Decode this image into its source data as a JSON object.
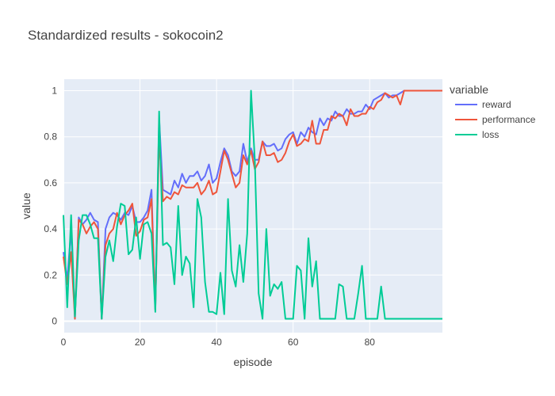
{
  "chart_data": {
    "type": "line",
    "title": "Standardized results - sokocoin2",
    "xlabel": "episode",
    "ylabel": "value",
    "xlim": [
      0,
      99
    ],
    "ylim": [
      -0.05,
      1.05
    ],
    "x_ticks": [
      0,
      20,
      40,
      60,
      80
    ],
    "y_ticks": [
      0,
      0.2,
      0.4,
      0.6,
      0.8,
      1
    ],
    "grid": true,
    "legend_title": "variable",
    "legend_position": "right",
    "colors": {
      "reward": "#636efa",
      "performance": "#ef553b",
      "loss": "#00cc96",
      "plot_bg": "#e5ecf6"
    },
    "series": [
      {
        "name": "reward",
        "values": [
          0.3,
          0.18,
          0.4,
          0.01,
          0.45,
          0.42,
          0.44,
          0.47,
          0.44,
          0.43,
          0.01,
          0.4,
          0.45,
          0.47,
          0.46,
          0.44,
          0.47,
          0.46,
          0.5,
          0.43,
          0.43,
          0.45,
          0.48,
          0.57,
          0.05,
          0.88,
          0.57,
          0.56,
          0.55,
          0.61,
          0.58,
          0.64,
          0.6,
          0.63,
          0.63,
          0.65,
          0.61,
          0.63,
          0.68,
          0.6,
          0.62,
          0.69,
          0.75,
          0.72,
          0.65,
          0.63,
          0.65,
          0.77,
          0.69,
          0.75,
          0.7,
          0.7,
          0.78,
          0.76,
          0.76,
          0.77,
          0.74,
          0.75,
          0.79,
          0.81,
          0.82,
          0.77,
          0.82,
          0.8,
          0.84,
          0.82,
          0.81,
          0.88,
          0.85,
          0.88,
          0.87,
          0.91,
          0.89,
          0.89,
          0.92,
          0.9,
          0.9,
          0.91,
          0.91,
          0.94,
          0.92,
          0.96,
          0.97,
          0.98,
          0.99,
          0.97,
          0.98,
          0.98,
          0.99,
          1.0,
          1.0,
          1.0,
          1.0,
          1.0,
          1.0,
          1.0,
          1.0,
          1.0,
          1.0,
          1.0
        ]
      },
      {
        "name": "performance",
        "values": [
          0.28,
          0.16,
          0.3,
          0.01,
          0.44,
          0.42,
          0.38,
          0.41,
          0.43,
          0.4,
          0.01,
          0.33,
          0.38,
          0.4,
          0.47,
          0.42,
          0.46,
          0.48,
          0.51,
          0.37,
          0.39,
          0.44,
          0.45,
          0.53,
          0.05,
          0.8,
          0.52,
          0.54,
          0.53,
          0.56,
          0.55,
          0.59,
          0.58,
          0.58,
          0.58,
          0.6,
          0.55,
          0.57,
          0.61,
          0.55,
          0.56,
          0.65,
          0.74,
          0.7,
          0.64,
          0.58,
          0.6,
          0.72,
          0.68,
          0.74,
          0.66,
          0.69,
          0.78,
          0.72,
          0.72,
          0.73,
          0.69,
          0.7,
          0.73,
          0.78,
          0.81,
          0.76,
          0.77,
          0.79,
          0.78,
          0.87,
          0.77,
          0.77,
          0.83,
          0.83,
          0.89,
          0.88,
          0.9,
          0.89,
          0.85,
          0.92,
          0.89,
          0.89,
          0.9,
          0.9,
          0.93,
          0.92,
          0.95,
          0.96,
          0.99,
          0.98,
          0.97,
          0.98,
          0.94,
          1.0,
          1.0,
          1.0,
          1.0,
          1.0,
          1.0,
          1.0,
          1.0,
          1.0,
          1.0,
          1.0
        ]
      },
      {
        "name": "loss",
        "values": [
          0.46,
          0.06,
          0.46,
          0.02,
          0.35,
          0.46,
          0.46,
          0.42,
          0.36,
          0.36,
          0.01,
          0.28,
          0.35,
          0.26,
          0.41,
          0.51,
          0.5,
          0.29,
          0.31,
          0.45,
          0.27,
          0.42,
          0.43,
          0.38,
          0.04,
          0.91,
          0.33,
          0.34,
          0.32,
          0.16,
          0.5,
          0.2,
          0.28,
          0.25,
          0.06,
          0.53,
          0.45,
          0.17,
          0.04,
          0.04,
          0.03,
          0.21,
          0.03,
          0.53,
          0.22,
          0.15,
          0.33,
          0.17,
          0.38,
          1.0,
          0.7,
          0.12,
          0.01,
          0.4,
          0.11,
          0.16,
          0.14,
          0.17,
          0.01,
          0.01,
          0.01,
          0.24,
          0.22,
          0.01,
          0.36,
          0.15,
          0.26,
          0.01,
          0.01,
          0.01,
          0.01,
          0.01,
          0.16,
          0.15,
          0.01,
          0.01,
          0.01,
          0.12,
          0.24,
          0.01,
          0.01,
          0.01,
          0.01,
          0.15,
          0.01,
          0.01,
          0.01,
          0.01,
          0.01,
          0.01,
          0.01,
          0.01,
          0.01,
          0.01,
          0.01,
          0.01,
          0.01,
          0.01,
          0.01,
          0.01
        ]
      }
    ]
  }
}
